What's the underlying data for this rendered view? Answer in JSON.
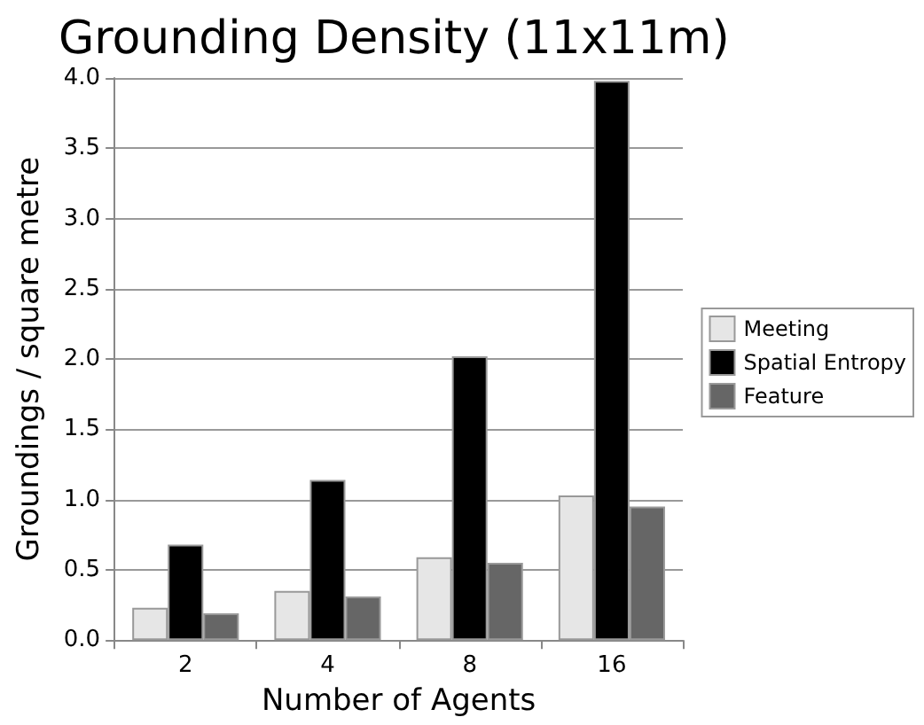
{
  "chart_data": {
    "type": "bar",
    "title": "Grounding Density (11x11m)",
    "xlabel": "Number of Agents",
    "ylabel": "Groundings / square metre",
    "categories": [
      "2",
      "4",
      "8",
      "16"
    ],
    "series": [
      {
        "name": "Meeting",
        "color": "#e6e6e6",
        "values": [
          0.23,
          0.35,
          0.59,
          1.03
        ]
      },
      {
        "name": "Spatial Entropy",
        "color": "#000000",
        "values": [
          0.68,
          1.14,
          2.02,
          3.98
        ]
      },
      {
        "name": "Feature",
        "color": "#666666",
        "values": [
          0.19,
          0.31,
          0.55,
          0.95
        ]
      }
    ],
    "ylim": [
      0,
      4
    ],
    "yticks": [
      {
        "value": 0,
        "label": "0.0"
      },
      0.5,
      {
        "value": 1,
        "label": "1.0"
      },
      1.5,
      {
        "value": 2,
        "label": "2.0"
      },
      2.5,
      {
        "value": 3,
        "label": "3.0"
      },
      3.5,
      {
        "value": 4,
        "label": "4.0"
      }
    ],
    "grid": "y",
    "legend": "right"
  }
}
